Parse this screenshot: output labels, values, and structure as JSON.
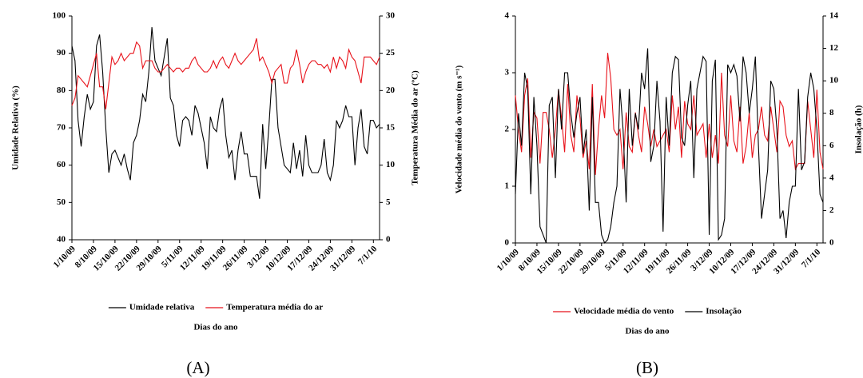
{
  "chart_data": [
    {
      "type": "line",
      "panel_label": "(A)",
      "x_label": "Dias do ano",
      "y_label": "Umidade Relativa (%)",
      "y2_label": "Temperatura Média do ar (ºC)",
      "categories": [
        "1/10/09",
        null,
        null,
        null,
        null,
        null,
        null,
        "8/10/09",
        null,
        null,
        null,
        null,
        null,
        null,
        "15/10/09",
        null,
        null,
        null,
        null,
        null,
        null,
        "22/10/09",
        null,
        null,
        null,
        null,
        null,
        null,
        "29/10/09",
        null,
        null,
        null,
        null,
        null,
        null,
        "5/11/09",
        null,
        null,
        null,
        null,
        null,
        null,
        "12/11/09",
        null,
        null,
        null,
        null,
        null,
        null,
        "19/11/09",
        null,
        null,
        null,
        null,
        null,
        null,
        "26/11/09",
        null,
        null,
        null,
        null,
        null,
        null,
        "3/12/09",
        null,
        null,
        null,
        null,
        null,
        null,
        "10/12/09",
        null,
        null,
        null,
        null,
        null,
        null,
        "17/12/09",
        null,
        null,
        null,
        null,
        null,
        null,
        "24/12/09",
        null,
        null,
        null,
        null,
        null,
        null,
        "31/12/09",
        null,
        null,
        null,
        null,
        null,
        null,
        "7/1/10",
        null,
        null
      ],
      "ylim": [
        40,
        100
      ],
      "yticks": [
        40,
        50,
        60,
        70,
        80,
        90,
        100
      ],
      "y2lim": [
        0,
        30
      ],
      "y2ticks": [
        0,
        5,
        10,
        15,
        20,
        25,
        30
      ],
      "series": [
        {
          "name": "Umidade relativa",
          "color": "#000000",
          "values": [
            92,
            88,
            72,
            65,
            73,
            79,
            75,
            77,
            92,
            95,
            85,
            70,
            58,
            63,
            64,
            62,
            60,
            63,
            59,
            56,
            66,
            68,
            72,
            79,
            77,
            85,
            97,
            88,
            86,
            84,
            89,
            94,
            78,
            76,
            68,
            65,
            72,
            73,
            72,
            68,
            76,
            74,
            70,
            66,
            59,
            73,
            70,
            69,
            75,
            78,
            68,
            62,
            64,
            56,
            64,
            69,
            63,
            63,
            57,
            57,
            57,
            51,
            71,
            59,
            70,
            83,
            83,
            70,
            65,
            60,
            59,
            58,
            66,
            59,
            64,
            57,
            68,
            60,
            58,
            58,
            58,
            60,
            67,
            58,
            56,
            60,
            72,
            70,
            72,
            76,
            73,
            73,
            60,
            70,
            75,
            65,
            63,
            72,
            72,
            70,
            71
          ]
        },
        {
          "name": "Temperatura média do ar",
          "color": "#e8121a",
          "axis": "y2",
          "values": [
            18,
            19,
            22,
            21.5,
            21,
            20.5,
            22,
            23.5,
            25,
            20.5,
            20.5,
            17.5,
            21,
            24.5,
            23.5,
            24,
            25,
            24,
            24.5,
            25,
            25,
            26.5,
            26,
            23,
            24,
            24,
            24,
            23,
            22.5,
            22.5,
            23,
            23.5,
            23,
            22.5,
            23,
            23,
            22.5,
            23,
            23,
            24,
            24.5,
            23.5,
            23,
            22.5,
            22.5,
            23,
            24,
            23,
            24,
            24.5,
            23.5,
            23,
            24,
            25,
            24,
            23.5,
            24,
            24.5,
            25,
            25.5,
            27,
            24,
            24.5,
            23.5,
            22.5,
            21,
            22.5,
            23,
            23.5,
            21,
            21,
            23,
            23.5,
            25.5,
            23.5,
            21,
            22.5,
            23.5,
            24,
            24,
            23.5,
            23.5,
            23,
            23.5,
            22.5,
            24.5,
            23,
            24.5,
            24,
            23,
            25.5,
            24.5,
            24,
            22.5,
            21,
            24.5,
            24.5,
            24.5,
            24,
            23.5,
            24.5
          ]
        }
      ]
    },
    {
      "type": "line",
      "panel_label": "(B)",
      "x_label": "Dias do ano",
      "y_label": "Velocidade média do vento (m s⁻¹)",
      "y2_label": "Insolação (h)",
      "categories": [
        "1/10/09",
        null,
        null,
        null,
        null,
        null,
        null,
        "8/10/09",
        null,
        null,
        null,
        null,
        null,
        null,
        "15/10/09",
        null,
        null,
        null,
        null,
        null,
        null,
        "22/10/09",
        null,
        null,
        null,
        null,
        null,
        null,
        "29/10/09",
        null,
        null,
        null,
        null,
        null,
        null,
        "5/11/09",
        null,
        null,
        null,
        null,
        null,
        null,
        "12/11/09",
        null,
        null,
        null,
        null,
        null,
        null,
        "19/11/09",
        null,
        null,
        null,
        null,
        null,
        null,
        "26/11/09",
        null,
        null,
        null,
        null,
        null,
        null,
        "3/12/09",
        null,
        null,
        null,
        null,
        null,
        null,
        "10/12/09",
        null,
        null,
        null,
        null,
        null,
        null,
        "17/12/09",
        null,
        null,
        null,
        null,
        null,
        null,
        "24/12/09",
        null,
        null,
        null,
        null,
        null,
        null,
        "31/12/09",
        null,
        null,
        null,
        null,
        null,
        null,
        "7/1/10",
        null,
        null
      ],
      "ylim": [
        0,
        4
      ],
      "yticks": [
        0,
        1,
        2,
        3,
        4
      ],
      "y2lim": [
        0,
        14
      ],
      "y2ticks": [
        0,
        2,
        4,
        6,
        8,
        10,
        12,
        14
      ],
      "series": [
        {
          "name": "Velocidade média do vento",
          "color": "#e8121a",
          "values": [
            2.6,
            2.0,
            1.6,
            2.6,
            2.9,
            1.5,
            2.3,
            2.2,
            1.4,
            2.3,
            2.3,
            2.0,
            1.5,
            2.0,
            2.7,
            2.2,
            1.6,
            2.8,
            1.9,
            1.6,
            2.6,
            2.2,
            1.5,
            1.8,
            1.3,
            2.8,
            1.2,
            2.0,
            2.6,
            2.2,
            3.35,
            2.9,
            2.0,
            1.9,
            2.0,
            1.3,
            2.3,
            1.7,
            1.6,
            2.3,
            1.9,
            1.6,
            2.4,
            2.1,
            1.7,
            2.0,
            1.7,
            1.8,
            1.9,
            2.0,
            1.6,
            2.6,
            2.0,
            2.4,
            1.5,
            2.5,
            2.1,
            2.0,
            2.6,
            1.9,
            2.0,
            2.1,
            1.5,
            2.1,
            1.5,
            1.9,
            1.4,
            3.0,
            1.9,
            1.7,
            2.6,
            1.8,
            1.6,
            2.4,
            1.4,
            1.7,
            2.3,
            1.5,
            1.9,
            2.0,
            2.4,
            1.9,
            1.8,
            2.4,
            2.0,
            1.6,
            2.5,
            2.4,
            1.9,
            1.7,
            1.8,
            1.3,
            1.4,
            1.4,
            1.4,
            2.5,
            2.0,
            1.5,
            2.7,
            1.6,
            1.3
          ]
        },
        {
          "name": "Insolação",
          "color": "#000000",
          "axis": "y2",
          "values": [
            3,
            8,
            6,
            10.5,
            9.5,
            3,
            9,
            6,
            1,
            0.5,
            0,
            8.5,
            9,
            4,
            9.5,
            7,
            10.5,
            10.5,
            8,
            6.5,
            8,
            9,
            5.5,
            7,
            2,
            9,
            2.5,
            2.5,
            0.5,
            0,
            0.2,
            1,
            2.5,
            3.5,
            9.5,
            7,
            2.5,
            9.5,
            6,
            8,
            7,
            10.5,
            9.5,
            12,
            5,
            6,
            10,
            7.5,
            0.7,
            9,
            6,
            10.5,
            11.5,
            11.3,
            6.5,
            6,
            8.5,
            10,
            4,
            9.5,
            10.5,
            11.5,
            11.2,
            0.5,
            10,
            11.3,
            0.2,
            0.5,
            1.5,
            11,
            10.5,
            11,
            10.3,
            7.5,
            11.5,
            10.5,
            8,
            9.5,
            11.5,
            6,
            1.5,
            3,
            4.5,
            10,
            9.5,
            7,
            1.5,
            2,
            0.3,
            2.5,
            3.5,
            3.5,
            9.5,
            4.5,
            5,
            9,
            10.5,
            9.5,
            7,
            3,
            2.5
          ]
        }
      ]
    }
  ]
}
